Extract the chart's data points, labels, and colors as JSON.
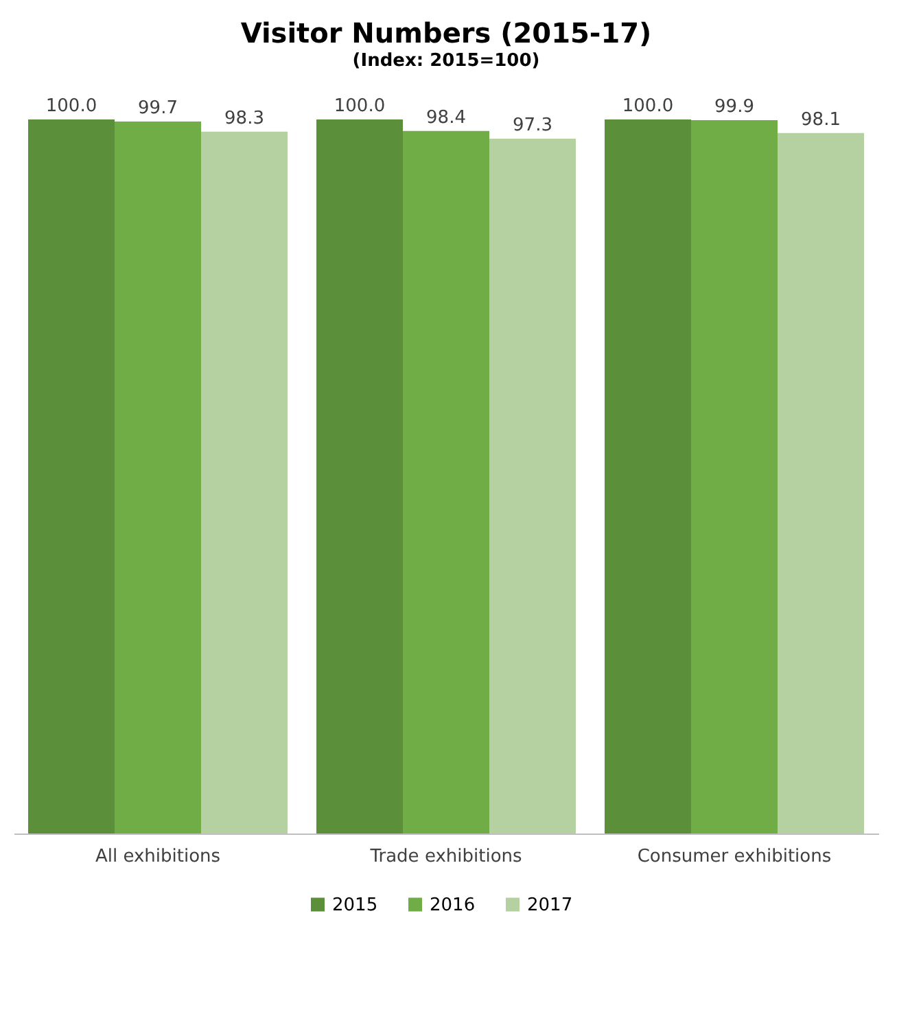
{
  "chart_data": {
    "type": "bar",
    "title": "Visitor Numbers (2015-17)",
    "subtitle": "(Index: 2015=100)",
    "categories": [
      "All exhibitions",
      "Trade exhibitions",
      "Consumer exhibitions"
    ],
    "series": [
      {
        "name": "2015",
        "color": "#5b8f3a",
        "values": [
          100.0,
          100.0,
          100.0
        ],
        "value_labels": [
          "100.0",
          "100.0",
          "100.0"
        ]
      },
      {
        "name": "2016",
        "color": "#70ad47",
        "values": [
          99.7,
          98.4,
          99.9
        ],
        "value_labels": [
          "99.7",
          "98.4",
          "99.9"
        ]
      },
      {
        "name": "2017",
        "color": "#b5d0a1",
        "values": [
          98.3,
          97.3,
          98.1
        ],
        "value_labels": [
          "98.3",
          "97.3",
          "98.1"
        ]
      }
    ],
    "legend": "bottom",
    "grid": false
  }
}
